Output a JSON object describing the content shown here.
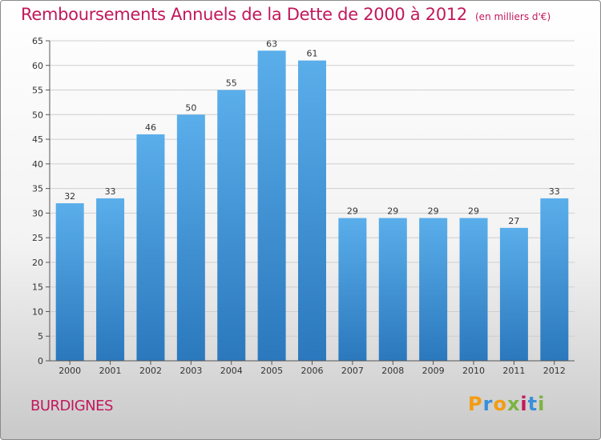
{
  "title": "Remboursements Annuels de la Dette de 2000 à 2012",
  "subtitle": "(en milliers d'€)",
  "commune": "BURDIGNES",
  "logo": {
    "text": "Proxiti",
    "letter_colors": [
      "#f39c12",
      "#3a8fd9",
      "#f39c12",
      "#7cb342",
      "#c2185b",
      "#3a8fd9",
      "#7cb342"
    ]
  },
  "colors": {
    "bar_top": "#5aaeea",
    "bar_bottom": "#2b78bd",
    "title": "#c2185b"
  },
  "chart_data": {
    "type": "bar",
    "title": "Remboursements Annuels de la Dette de 2000 à 2012",
    "subtitle": "(en milliers d'€)",
    "categories": [
      "2000",
      "2001",
      "2002",
      "2003",
      "2004",
      "2005",
      "2006",
      "2007",
      "2008",
      "2009",
      "2010",
      "2011",
      "2012"
    ],
    "values": [
      32,
      33,
      46,
      50,
      55,
      63,
      61,
      29,
      29,
      29,
      29,
      27,
      33
    ],
    "ylim": [
      0,
      65
    ],
    "yticks": [
      0,
      5,
      10,
      15,
      20,
      25,
      30,
      35,
      40,
      45,
      50,
      55,
      60,
      65
    ],
    "grid": true,
    "data_labels": true
  }
}
